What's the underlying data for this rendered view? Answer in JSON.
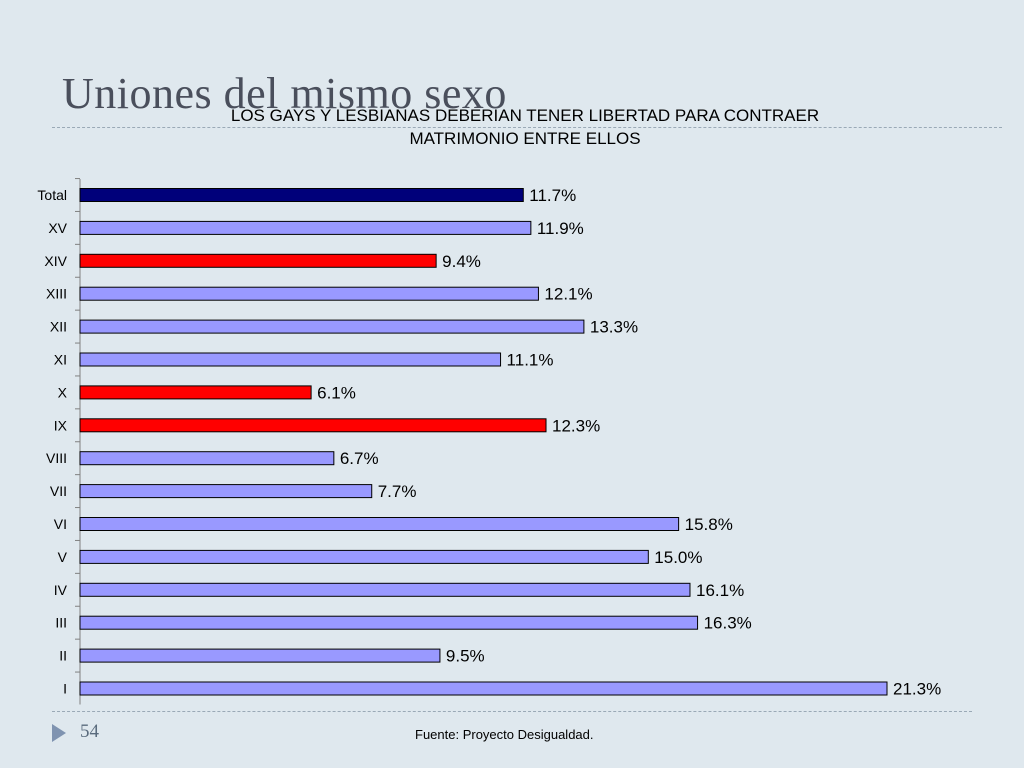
{
  "slide": {
    "title": "Uniones del mismo sexo",
    "page_number": "54",
    "source": "Fuente: Proyecto Desigualdad."
  },
  "chart_data": {
    "type": "bar",
    "orientation": "horizontal",
    "title_lines": [
      "LOS GAYS Y LESBIANAS DEBERIAN TENER LIBERTAD PARA CONTRAER",
      "MATRIMONIO ENTRE ELLOS"
    ],
    "categories": [
      "Total",
      "XV",
      "XIV",
      "XIII",
      "XII",
      "XI",
      "X",
      "IX",
      "VIII",
      "VII",
      "VI",
      "V",
      "IV",
      "III",
      "II",
      "I"
    ],
    "values": [
      11.7,
      11.9,
      9.4,
      12.1,
      13.3,
      11.1,
      6.1,
      12.3,
      6.7,
      7.7,
      15.8,
      15.0,
      16.1,
      16.3,
      9.5,
      21.3
    ],
    "value_labels": [
      "11.7%",
      "11.9%",
      "9.4%",
      "12.1%",
      "13.3%",
      "11.1%",
      "6.1%",
      "12.3%",
      "6.7%",
      "7.7%",
      "15.8%",
      "15.0%",
      "16.1%",
      "16.3%",
      "9.5%",
      "21.3%"
    ],
    "colors": [
      "#00007a",
      "#9999ff",
      "#ff0000",
      "#9999ff",
      "#9999ff",
      "#9999ff",
      "#ff0000",
      "#ff0000",
      "#9999ff",
      "#9999ff",
      "#9999ff",
      "#9999ff",
      "#9999ff",
      "#9999ff",
      "#9999ff",
      "#9999ff"
    ],
    "xlim": [
      0,
      21.3
    ],
    "grid": false,
    "legend": "none"
  }
}
